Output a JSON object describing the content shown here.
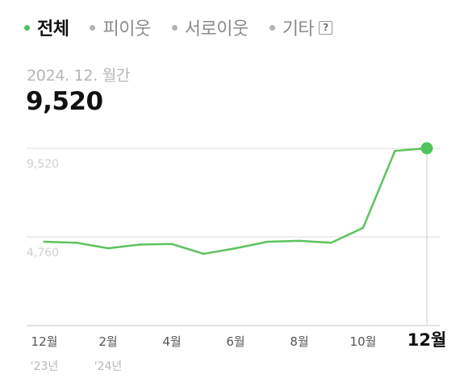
{
  "tabs": [
    {
      "label": "전체",
      "active": true
    },
    {
      "label": "피이웃",
      "active": false
    },
    {
      "label": "서로이웃",
      "active": false
    },
    {
      "label": "기타",
      "active": false,
      "help": "?"
    }
  ],
  "summary": {
    "period": "2024. 12. 월간",
    "value": "9,520"
  },
  "colors": {
    "line": "#5cc35f",
    "accent": "#4fc45a"
  },
  "chart_data": {
    "type": "line",
    "categories": [
      "2023-12",
      "2024-01",
      "2024-02",
      "2024-03",
      "2024-04",
      "2024-05",
      "2024-06",
      "2024-07",
      "2024-08",
      "2024-09",
      "2024-10",
      "2024-11",
      "2024-12"
    ],
    "series": [
      {
        "values": [
          4500,
          4450,
          4150,
          4350,
          4380,
          3850,
          4150,
          4500,
          4550,
          4450,
          5250,
          9380,
          9520
        ]
      }
    ],
    "y_ticks": [
      {
        "value": 9520,
        "label": "9,520"
      },
      {
        "value": 4760,
        "label": "4,760"
      }
    ],
    "ylim": [
      0,
      9520
    ],
    "x_ticks": [
      {
        "index": 0,
        "label": "12월",
        "sub": "'23년"
      },
      {
        "index": 2,
        "label": "2월",
        "sub": "'24년"
      },
      {
        "index": 4,
        "label": "4월"
      },
      {
        "index": 6,
        "label": "6월"
      },
      {
        "index": 8,
        "label": "8월"
      },
      {
        "index": 10,
        "label": "10월"
      },
      {
        "index": 12,
        "label": "12월",
        "bold": true
      }
    ],
    "highlight_index": 12
  }
}
